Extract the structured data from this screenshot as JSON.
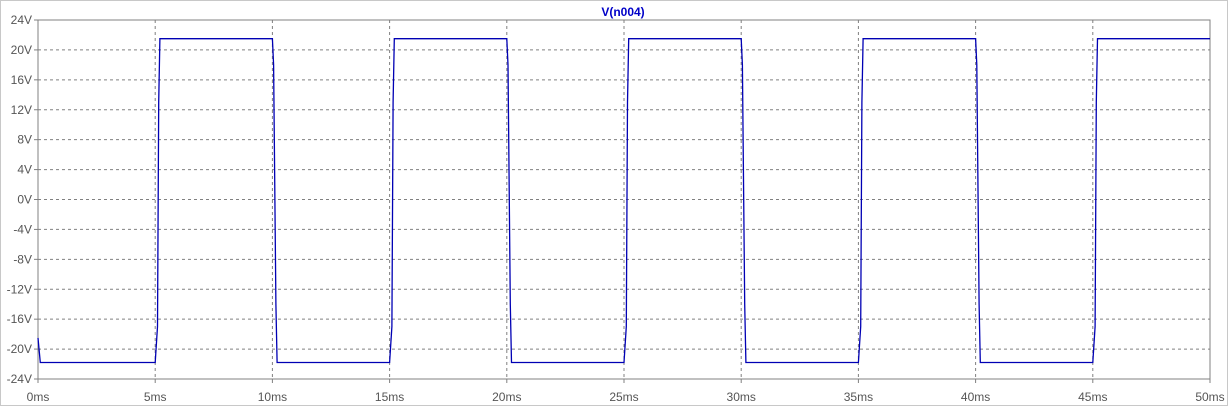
{
  "chart_data": {
    "type": "line",
    "title": "V(n004)",
    "xlabel": "",
    "ylabel": "",
    "xlim": [
      0,
      50
    ],
    "ylim": [
      -24,
      24
    ],
    "x_ticks": [
      0,
      5,
      10,
      15,
      20,
      25,
      30,
      35,
      40,
      45,
      50
    ],
    "x_tick_labels": [
      "0ms",
      "5ms",
      "10ms",
      "15ms",
      "20ms",
      "25ms",
      "30ms",
      "35ms",
      "40ms",
      "45ms",
      "50ms"
    ],
    "y_ticks": [
      24,
      20,
      16,
      12,
      8,
      4,
      0,
      -4,
      -8,
      -12,
      -16,
      -20,
      -24
    ],
    "y_tick_labels": [
      "24V",
      "20V",
      "16V",
      "12V",
      "8V",
      "4V",
      "0V",
      "-4V",
      "-8V",
      "-12V",
      "-16V",
      "-20V",
      "-24V"
    ],
    "grid": true,
    "series": [
      {
        "name": "V(n004)",
        "color": "#0000b4",
        "x": [
          0,
          0.1,
          5.0,
          5.1,
          5.15,
          5.2,
          10.0,
          10.05,
          10.15,
          10.2,
          15.0,
          15.1,
          15.15,
          15.2,
          20.0,
          20.05,
          20.15,
          20.2,
          25.0,
          25.1,
          25.15,
          25.2,
          30.0,
          30.05,
          30.15,
          30.2,
          35.0,
          35.1,
          35.15,
          35.2,
          40.0,
          40.05,
          40.15,
          40.2,
          45.0,
          45.1,
          45.15,
          45.2,
          50.0
        ],
        "y": [
          -18.5,
          -21.8,
          -21.8,
          -17.0,
          13.0,
          21.5,
          21.5,
          18.0,
          -14.0,
          -21.8,
          -21.8,
          -17.0,
          13.0,
          21.5,
          21.5,
          18.0,
          -14.0,
          -21.8,
          -21.8,
          -17.0,
          13.0,
          21.5,
          21.5,
          18.0,
          -14.0,
          -21.8,
          -21.8,
          -17.0,
          13.0,
          21.5,
          21.5,
          18.0,
          -14.0,
          -21.8,
          -21.8,
          -17.0,
          13.0,
          21.5,
          21.5
        ]
      }
    ]
  },
  "colors": {
    "trace": "#0000b4",
    "title": "#0000c8",
    "grid": "#808080",
    "frame": "#808080",
    "tick_label": "#555555"
  }
}
